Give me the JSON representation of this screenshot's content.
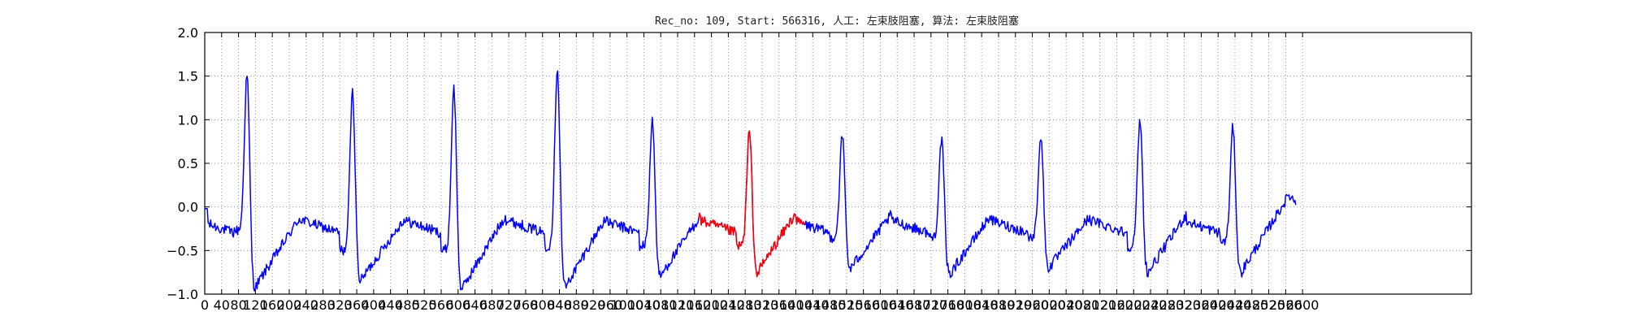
{
  "chart_data": {
    "type": "line",
    "title": "Rec_no: 109, Start: 566316, 人工: 左束肢阻塞, 算法: 左束肢阻塞",
    "xlabel": "",
    "ylabel": "",
    "xlim": [
      0,
      3000
    ],
    "ylim": [
      -1.0,
      2.0
    ],
    "grid": true,
    "yticks": [
      -1.0,
      -0.5,
      0.0,
      0.5,
      1.0,
      1.5,
      2.0
    ],
    "ytick_labels": [
      "−1.0",
      "−0.5",
      "0.0",
      "0.5",
      "1.0",
      "1.5",
      "2.0"
    ],
    "xticks": [
      0,
      40,
      80,
      120,
      160,
      200,
      240,
      280,
      320,
      360,
      400,
      440,
      480,
      520,
      560,
      600,
      640,
      680,
      720,
      760,
      800,
      840,
      880,
      920,
      960,
      1000,
      1040,
      1080,
      1120,
      1160,
      1200,
      1240,
      1280,
      1320,
      1360,
      1400,
      1440,
      1480,
      1520,
      1560,
      1600,
      1640,
      1680,
      1720,
      1760,
      1800,
      1840,
      1880,
      1920,
      1960,
      2000,
      2040,
      2080,
      2120,
      2160,
      2200,
      2240,
      2280,
      2320,
      2360,
      2400,
      2440,
      2480,
      2520,
      2560,
      2600
    ],
    "xtick_labels": [
      "0",
      "40",
      "80",
      "120",
      "160",
      "200",
      "240",
      "280",
      "320",
      "360",
      "400",
      "440",
      "480",
      "520",
      "560",
      "600",
      "640",
      "680",
      "720",
      "760",
      "800",
      "840",
      "880",
      "920",
      "960",
      "1000",
      "1040",
      "1080",
      "1120",
      "1160",
      "1200",
      "1240",
      "1280",
      "1320",
      "1360",
      "1400",
      "1440",
      "1480",
      "1520",
      "1560",
      "1600",
      "1640",
      "1680",
      "1720",
      "1760",
      "1800",
      "1840",
      "1880",
      "1920",
      "1960",
      "2000",
      "2040",
      "2080",
      "2120",
      "2160",
      "2200",
      "2240",
      "2280",
      "2320",
      "2360",
      "2400",
      "2440",
      "2480",
      "2520",
      "2560",
      "2600"
    ],
    "beats": [
      {
        "r_x": 100,
        "r_amp": 1.52,
        "s_amp": -0.95,
        "base": -0.27,
        "t_amp": -0.05
      },
      {
        "r_x": 350,
        "r_amp": 1.32,
        "s_amp": -0.87,
        "base": -0.5,
        "t_amp": -0.05
      },
      {
        "r_x": 590,
        "r_amp": 1.37,
        "s_amp": -0.97,
        "base": -0.5,
        "t_amp": 0.0
      },
      {
        "r_x": 835,
        "r_amp": 1.6,
        "s_amp": -0.95,
        "base": -0.45,
        "t_amp": 0.05
      },
      {
        "r_x": 1060,
        "r_amp": 1.0,
        "s_amp": -0.82,
        "base": -0.45,
        "t_amp": 0.05
      },
      {
        "r_x": 1290,
        "r_amp": 0.87,
        "s_amp": -0.78,
        "base": -0.45,
        "t_amp": 0.12
      },
      {
        "r_x": 1510,
        "r_amp": 0.82,
        "s_amp": -0.73,
        "base": -0.35,
        "t_amp": 0.03
      },
      {
        "r_x": 1745,
        "r_amp": 0.78,
        "s_amp": -0.8,
        "base": -0.35,
        "t_amp": 0.03
      },
      {
        "r_x": 1980,
        "r_amp": 0.82,
        "s_amp": -0.72,
        "base": -0.35,
        "t_amp": 0.0
      },
      {
        "r_x": 2215,
        "r_amp": 1.0,
        "s_amp": -0.78,
        "base": -0.45,
        "t_amp": 0.1
      },
      {
        "r_x": 2435,
        "r_amp": 0.92,
        "s_amp": -0.78,
        "base": -0.4,
        "t_amp": 0.15
      }
    ],
    "series": [
      {
        "color": "#0000ff",
        "x_range": [
          0,
          2585
        ]
      },
      {
        "color": "#ff0000",
        "x_range": [
          1170,
          1420
        ]
      }
    ]
  }
}
